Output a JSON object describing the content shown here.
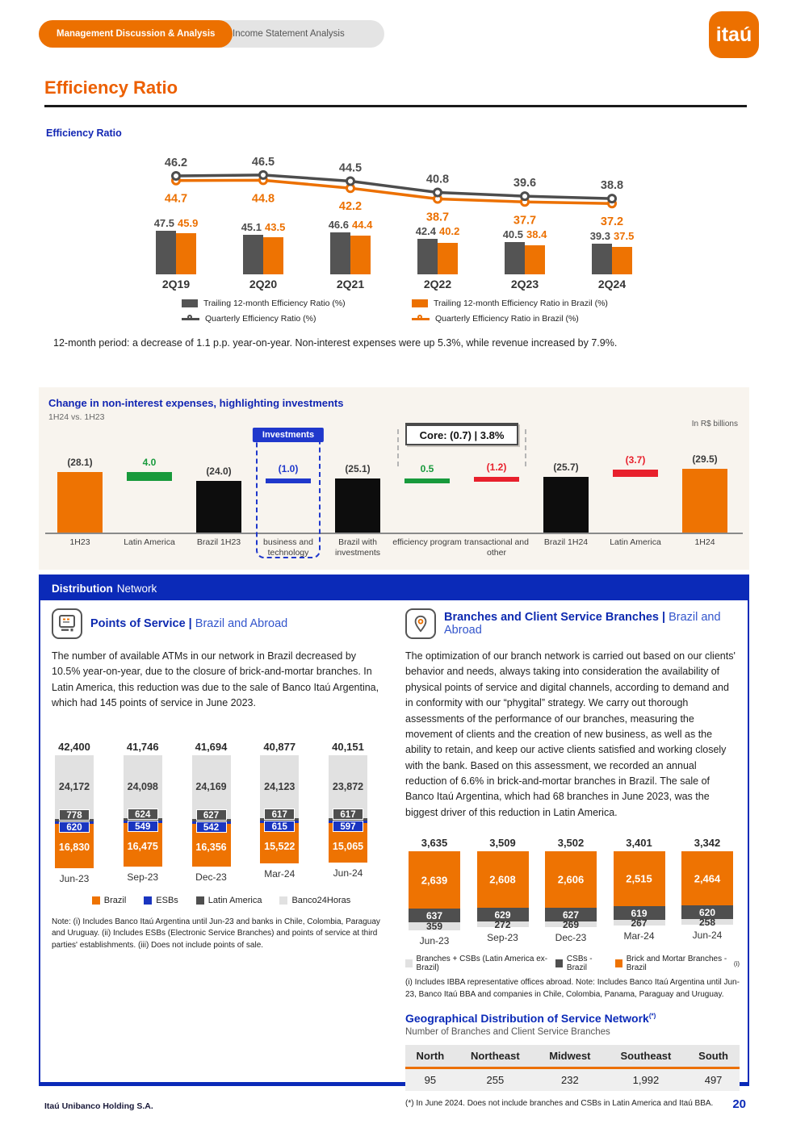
{
  "header": {
    "tab_active": "Management Discussion & Analysis",
    "tab_inactive": "Income Statement Analysis",
    "logo_text": "itaú"
  },
  "page": {
    "title": "Efficiency Ratio",
    "footer_company": "Itaú Unibanco Holding S.A.",
    "footer_page": "20"
  },
  "colors": {
    "orange": "#ec7000",
    "chart_orange": "#ee7302",
    "dark_gray": "#545454",
    "light_gray": "#e1e1e1",
    "deep_blue": "#0b2ab8",
    "esb_blue": "#1a35c0",
    "green": "#189a3c",
    "red": "#e8202c",
    "black_bar": "#0d0d0d"
  },
  "efficiency_chart": {
    "type": "bar+line",
    "section_title": "Efficiency Ratio",
    "categories": [
      "2Q19",
      "2Q20",
      "2Q21",
      "2Q22",
      "2Q23",
      "2Q24"
    ],
    "series": [
      {
        "name": "Trailing 12-month Efficiency Ratio (%)",
        "type": "bar",
        "color": "#545454",
        "values": [
          47.5,
          45.1,
          46.6,
          42.4,
          40.5,
          39.3
        ]
      },
      {
        "name": "Trailing 12-month Efficiency Ratio in Brazil (%)",
        "type": "bar",
        "color": "#ee7302",
        "values": [
          45.9,
          43.5,
          44.4,
          40.2,
          38.4,
          37.5
        ]
      },
      {
        "name": "Quarterly Efficiency Ratio (%)",
        "type": "line",
        "color": "#4d4d4d",
        "values": [
          46.2,
          46.5,
          44.5,
          40.8,
          39.6,
          38.8
        ]
      },
      {
        "name": "Quarterly Efficiency Ratio in Brazil (%)",
        "type": "line",
        "color": "#ec7000",
        "values": [
          44.7,
          44.8,
          42.2,
          38.7,
          37.7,
          37.2
        ]
      }
    ]
  },
  "summary_text": "12-month period: a decrease of 1.1 p.p. year-on-year. Non-interest expenses were up 5.3%, while revenue increased by 7.9%.",
  "waterfall": {
    "type": "waterfall",
    "title": "Change in non-interest expenses, highlighting investments",
    "subtitle": "1H24 vs. 1H23",
    "unit_note": "In R$ billions",
    "investments_label": "Investments",
    "core_label": "Core: (0.7) | 3.8%",
    "bars": [
      {
        "category": "1H23",
        "value_display": "(28.1)",
        "base": 0,
        "magnitude": 28.1,
        "color": "#ee7302",
        "label_color": "#3a3a3a"
      },
      {
        "category": "Latin America",
        "value_display": "4.0",
        "base": 24.1,
        "magnitude": 4.0,
        "color": "#189a3c",
        "label_color": "#189a3c"
      },
      {
        "category": "Brazil 1H23",
        "value_display": "(24.0)",
        "base": 0,
        "magnitude": 24.0,
        "color": "#0d0d0d",
        "label_color": "#3a3a3a"
      },
      {
        "category": "business and technology",
        "value_display": "(1.0)",
        "base": 24.0,
        "magnitude": 1.0,
        "color": "#2038cc",
        "label_color": "#2038cc"
      },
      {
        "category": "Brazil with investments",
        "value_display": "(25.1)",
        "base": 0,
        "magnitude": 25.1,
        "color": "#0d0d0d",
        "label_color": "#3a3a3a"
      },
      {
        "category": "efficiency program",
        "value_display": "0.5",
        "base": 24.6,
        "magnitude": 0.5,
        "color": "#189a3c",
        "label_color": "#189a3c"
      },
      {
        "category": "transactional and other",
        "value_display": "(1.2)",
        "base": 24.6,
        "magnitude": 1.2,
        "color": "#e8202c",
        "label_color": "#e8202c"
      },
      {
        "category": "Brazil 1H24",
        "value_display": "(25.7)",
        "base": 0,
        "magnitude": 25.7,
        "color": "#0d0d0d",
        "label_color": "#3a3a3a"
      },
      {
        "category": "Latin America",
        "value_display": "(3.7)",
        "base": 25.7,
        "magnitude": 3.7,
        "color": "#e8202c",
        "label_color": "#e8202c"
      },
      {
        "category": "1H24",
        "value_display": "(29.5)",
        "base": 0,
        "magnitude": 29.5,
        "color": "#ee7302",
        "label_color": "#3a3a3a"
      }
    ]
  },
  "distribution": {
    "header_bold": "Distribution",
    "header_rest": "Network",
    "left": {
      "heading_bold": "Points of Service |",
      "heading_light": "Brazil and Abroad",
      "paragraph": "The number of available ATMs in our network in Brazil decreased by 10.5% year-on-year, due to the closure of brick-and-mortar branches. In Latin America, this reduction was due to the sale of Banco Itaú Argentina, which had 145 points of service in June 2023.",
      "chart": {
        "type": "stacked-bar",
        "categories": [
          "Jun-23",
          "Sep-23",
          "Dec-23",
          "Mar-24",
          "Jun-24"
        ],
        "totals": [
          "42,400",
          "41,746",
          "41,694",
          "40,877",
          "40,151"
        ],
        "series": [
          {
            "name": "Banco24Horas",
            "color": "#e1e1e1",
            "values": [
              24172,
              24098,
              24169,
              24123,
              23872
            ],
            "display": [
              "24,172",
              "24,098",
              "24,169",
              "24,123",
              "23,872"
            ]
          },
          {
            "name": "Latin America",
            "color": "#4f4f4f",
            "values": [
              778,
              624,
              627,
              617,
              617
            ],
            "display": [
              "778",
              "624",
              "627",
              "617",
              "617"
            ]
          },
          {
            "name": "ESBs",
            "color": "#1a35c0",
            "values": [
              620,
              549,
              542,
              615,
              597
            ],
            "display": [
              "620",
              "549",
              "542",
              "615",
              "597"
            ]
          },
          {
            "name": "Brazil",
            "color": "#ee7302",
            "values": [
              16830,
              16475,
              16356,
              15522,
              15065
            ],
            "display": [
              "16,830",
              "16,475",
              "16,356",
              "15,522",
              "15,065"
            ]
          }
        ],
        "legend": [
          "Brazil",
          "ESBs",
          "Latin America",
          "Banco24Horas"
        ],
        "legend_colors": [
          "#ee7302",
          "#1a35c0",
          "#4f4f4f",
          "#e1e1e1"
        ]
      },
      "note": "Note: (i) Includes Banco Itaú Argentina until Jun-23 and banks in Chile, Colombia, Paraguay and Uruguay. (ii) Includes ESBs (Electronic Service Branches) and points of service at third parties' establishments. (iii) Does not include points of sale."
    },
    "right": {
      "heading_bold": "Branches and Client Service Branches |",
      "heading_light": "Brazil and Abroad",
      "paragraph": "The optimization of our branch network is carried out based on our clients' behavior and needs, always taking into consideration the availability of physical points of service and digital channels, according to demand and in conformity with our “phygital” strategy. We carry out thorough assessments of the performance of our branches, measuring the movement of clients and the creation of new business, as well as the ability to retain, and keep our active clients satisfied and working closely with the bank. Based on this assessment, we recorded an annual reduction of 6.6% in brick-and-mortar branches in Brazil. The sale of Banco Itaú Argentina, which had 68 branches in June 2023, was the biggest driver of this reduction in Latin America.",
      "chart": {
        "type": "stacked-bar",
        "categories": [
          "Jun-23",
          "Sep-23",
          "Dec-23",
          "Mar-24",
          "Jun-24"
        ],
        "totals": [
          "3,635",
          "3,509",
          "3,502",
          "3,401",
          "3,342"
        ],
        "series": [
          {
            "name": "Brick and Mortar Branches - Brazil",
            "color": "#ee7302",
            "values": [
              2639,
              2608,
              2606,
              2515,
              2464
            ],
            "display": [
              "2,639",
              "2,608",
              "2,606",
              "2,515",
              "2,464"
            ]
          },
          {
            "name": "CSBs - Brazil",
            "color": "#4f4f4f",
            "values": [
              637,
              629,
              627,
              619,
              620
            ],
            "display": [
              "637",
              "629",
              "627",
              "619",
              "620"
            ]
          },
          {
            "name": "Branches + CSBs (Latin America ex-Brazil)",
            "color": "#e1e1e1",
            "values": [
              359,
              272,
              269,
              267,
              258
            ],
            "display": [
              "359",
              "272",
              "269",
              "267",
              "258"
            ]
          }
        ],
        "legend": [
          "Branches + CSBs (Latin America ex-Brazil)",
          "CSBs - Brazil",
          "Brick and Mortar Branches - Brazil"
        ],
        "legend_colors": [
          "#e1e1e1",
          "#4f4f4f",
          "#ee7302"
        ],
        "legend_superscript": "(i)"
      },
      "note": "(i) Includes IBBA representative offices abroad. Note: Includes Banco Itaú Argentina until Jun-23, Banco Itaú BBA and companies in Chile, Colombia, Panama, Paraguay and Uruguay.",
      "geo": {
        "title": "Geographical Distribution of Service Network",
        "title_superscript": "(*)",
        "subtitle": "Number of Branches and Client Service Branches",
        "columns": [
          "North",
          "Northeast",
          "Midwest",
          "Southeast",
          "South"
        ],
        "values": [
          "95",
          "255",
          "232",
          "1,992",
          "497"
        ],
        "footnote": "(*) In June 2024. Does not include branches and CSBs in Latin America and Itaú BBA."
      }
    }
  }
}
